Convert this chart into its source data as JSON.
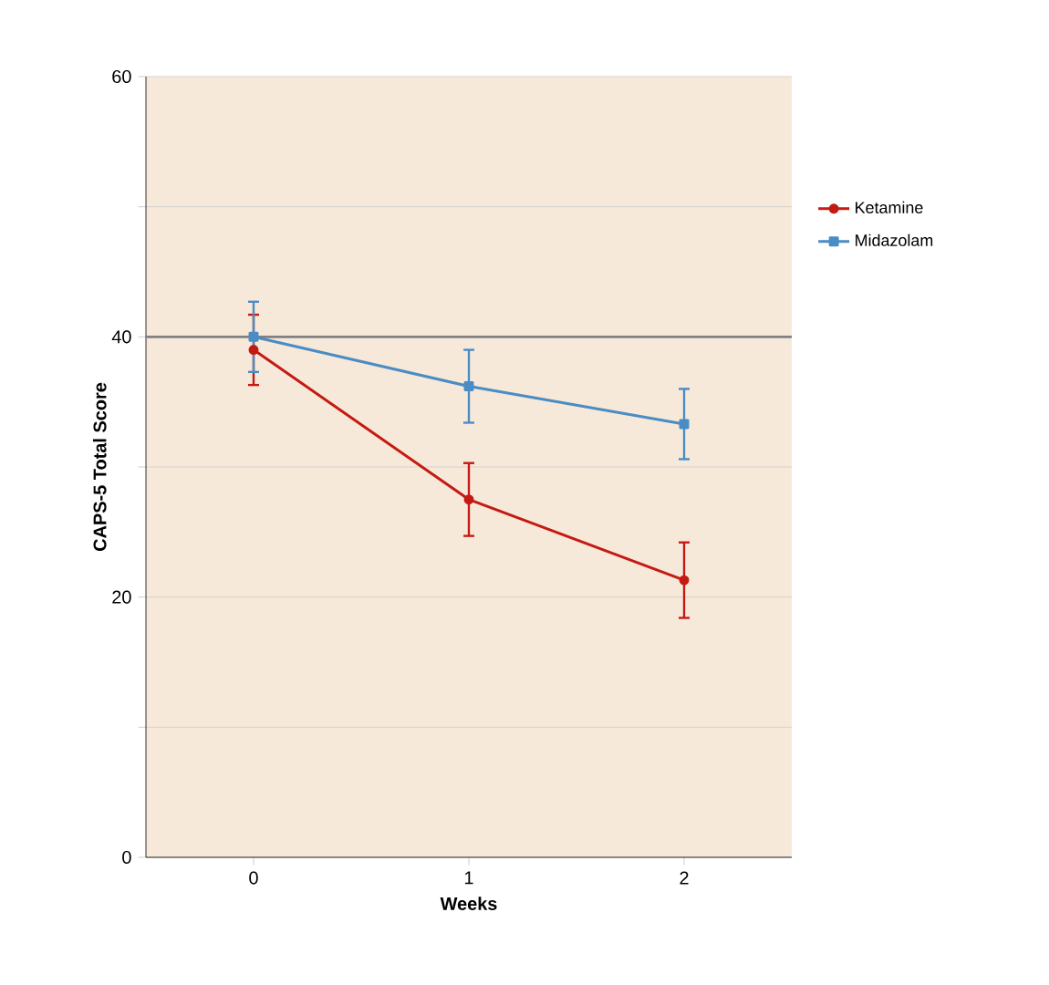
{
  "chart_data": {
    "type": "line",
    "xlabel": "Weeks",
    "ylabel": "CAPS-5 Total Score",
    "x": [
      0,
      1,
      2
    ],
    "xlim": [
      -0.5,
      2.5
    ],
    "xticks": [
      0,
      1,
      2
    ],
    "ylim": [
      0,
      60
    ],
    "yticks": [
      0,
      {
        "value": 10,
        "label": null
      },
      20,
      {
        "value": 30,
        "label": null
      },
      40,
      {
        "value": 50,
        "label": null
      },
      60
    ],
    "grid": "y",
    "legend": "right",
    "ref_lines": [
      {
        "axis": "y",
        "value": 40,
        "color": "#808080"
      }
    ],
    "series": [
      {
        "name": "Ketamine",
        "color": "#c41a14",
        "marker": "circle",
        "values": [
          39,
          27.5,
          21.3
        ],
        "errors": [
          2.7,
          2.8,
          2.9
        ]
      },
      {
        "name": "Midazolam",
        "color": "#4a8cc4",
        "marker": "square",
        "values": [
          40,
          36.2,
          33.3
        ],
        "errors": [
          2.7,
          2.8,
          2.7
        ]
      }
    ]
  }
}
